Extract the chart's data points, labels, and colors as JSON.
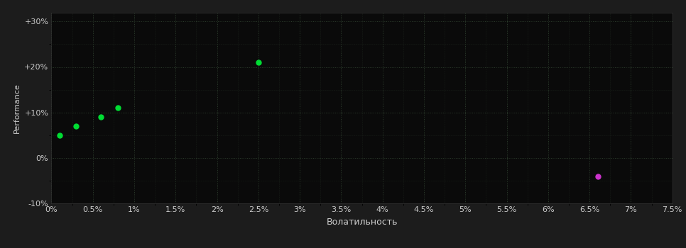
{
  "background_color": "#1c1c1c",
  "plot_bg_color": "#0a0a0a",
  "grid_color": "#2d3d2d",
  "xlabel": "Волатильность",
  "ylabel": "Performance",
  "xlim": [
    0,
    0.075
  ],
  "ylim": [
    -0.1,
    0.32
  ],
  "xtick_labels": [
    "0%",
    "0.5%",
    "1%",
    "1.5%",
    "2%",
    "2.5%",
    "3%",
    "3.5%",
    "4%",
    "4.5%",
    "5%",
    "5.5%",
    "6%",
    "6.5%",
    "7%",
    "7.5%"
  ],
  "xtick_values": [
    0,
    0.005,
    0.01,
    0.015,
    0.02,
    0.025,
    0.03,
    0.035,
    0.04,
    0.045,
    0.05,
    0.055,
    0.06,
    0.065,
    0.07,
    0.075
  ],
  "ytick_labels": [
    "-10%",
    "0%",
    "+10%",
    "+20%",
    "+30%"
  ],
  "ytick_values": [
    -0.1,
    0.0,
    0.1,
    0.2,
    0.3
  ],
  "green_points": {
    "x": [
      0.001,
      0.003,
      0.006,
      0.008,
      0.025
    ],
    "y": [
      0.05,
      0.07,
      0.09,
      0.11,
      0.21
    ],
    "color": "#00dd33",
    "size": 25
  },
  "magenta_point": {
    "x": [
      0.066
    ],
    "y": [
      -0.04
    ],
    "color": "#cc33cc",
    "size": 25
  },
  "font_color": "#cccccc",
  "font_size": 8,
  "ylabel_font_size": 8,
  "xlabel_font_size": 9
}
